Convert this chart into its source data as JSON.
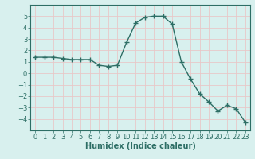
{
  "x": [
    0,
    1,
    2,
    3,
    4,
    5,
    6,
    7,
    8,
    9,
    10,
    11,
    12,
    13,
    14,
    15,
    16,
    17,
    18,
    19,
    20,
    21,
    22,
    23
  ],
  "y": [
    1.4,
    1.4,
    1.4,
    1.3,
    1.2,
    1.2,
    1.2,
    0.7,
    0.6,
    0.7,
    2.7,
    4.4,
    4.9,
    5.0,
    5.0,
    4.3,
    1.0,
    -0.5,
    -1.8,
    -2.5,
    -3.3,
    -2.8,
    -3.1,
    -4.3
  ],
  "line_color": "#2d6e65",
  "marker": "+",
  "marker_size": 4,
  "linewidth": 1.0,
  "xlabel": "Humidex (Indice chaleur)",
  "xlabel_fontsize": 7,
  "xlabel_fontweight": "bold",
  "xlim": [
    -0.5,
    23.5
  ],
  "ylim": [
    -5,
    6
  ],
  "yticks": [
    -4,
    -3,
    -2,
    -1,
    0,
    1,
    2,
    3,
    4,
    5
  ],
  "xticks": [
    0,
    1,
    2,
    3,
    4,
    5,
    6,
    7,
    8,
    9,
    10,
    11,
    12,
    13,
    14,
    15,
    16,
    17,
    18,
    19,
    20,
    21,
    22,
    23
  ],
  "background_color": "#d8f0ee",
  "grid_color": "#e8c8c8",
  "tick_color": "#2d6e65",
  "tick_fontsize": 6,
  "spine_color": "#2d6e65"
}
